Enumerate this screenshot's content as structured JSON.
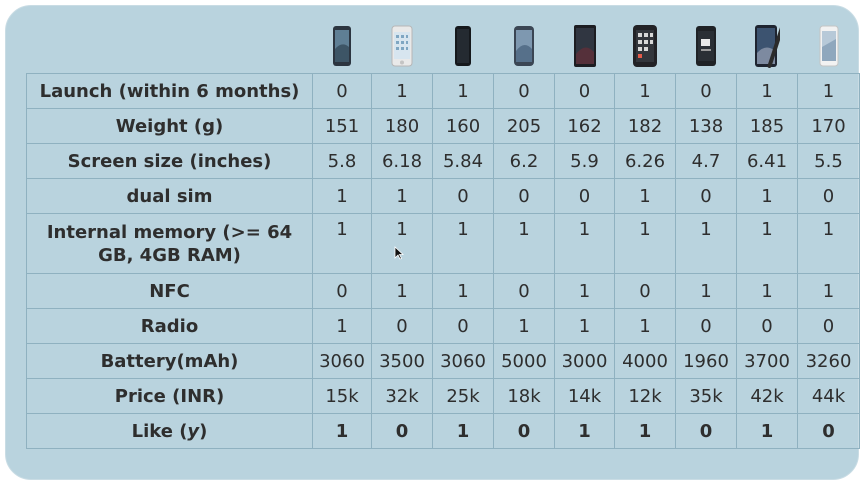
{
  "table": {
    "phone_icons": [
      "phone-1-icon",
      "phone-2-icon",
      "phone-3-icon",
      "phone-4-icon",
      "phone-5-icon",
      "phone-6-icon",
      "phone-7-icon",
      "phone-8-icon",
      "phone-9-icon"
    ],
    "rows": [
      {
        "label": "Launch (within 6 months)",
        "values": [
          "0",
          "1",
          "1",
          "0",
          "0",
          "1",
          "0",
          "1",
          "1"
        ]
      },
      {
        "label": "Weight (g)",
        "values": [
          "151",
          "180",
          "160",
          "205",
          "162",
          "182",
          "138",
          "185",
          "170"
        ]
      },
      {
        "label": "Screen size (inches)",
        "values": [
          "5.8",
          "6.18",
          "5.84",
          "6.2",
          "5.9",
          "6.26",
          "4.7",
          "6.41",
          "5.5"
        ]
      },
      {
        "label": "dual sim",
        "values": [
          "1",
          "1",
          "0",
          "0",
          "0",
          "1",
          "0",
          "1",
          "0"
        ]
      },
      {
        "label": "Internal memory (>= 64 GB, 4GB RAM)",
        "values": [
          "1",
          "1",
          "1",
          "1",
          "1",
          "1",
          "1",
          "1",
          "1"
        ]
      },
      {
        "label": "NFC",
        "values": [
          "0",
          "1",
          "1",
          "0",
          "1",
          "0",
          "1",
          "1",
          "1"
        ]
      },
      {
        "label": "Radio",
        "values": [
          "1",
          "0",
          "0",
          "1",
          "1",
          "1",
          "0",
          "0",
          "0"
        ]
      },
      {
        "label": "Battery(mAh)",
        "values": [
          "3060",
          "3500",
          "3060",
          "5000",
          "3000",
          "4000",
          "1960",
          "3700",
          "3260"
        ]
      },
      {
        "label": "Price (INR)",
        "values": [
          "15k",
          "32k",
          "25k",
          "18k",
          "14k",
          "12k",
          "35k",
          "42k",
          "44k"
        ]
      },
      {
        "label_main": "Like (",
        "label_var": "y",
        "label_end": ")",
        "values": [
          "1",
          "0",
          "1",
          "0",
          "1",
          "1",
          "0",
          "1",
          "0"
        ]
      }
    ]
  },
  "colors": {
    "panel_background": "#b9d3de",
    "grid_line": "#8fb1c0",
    "text": "#2e2e2e"
  }
}
